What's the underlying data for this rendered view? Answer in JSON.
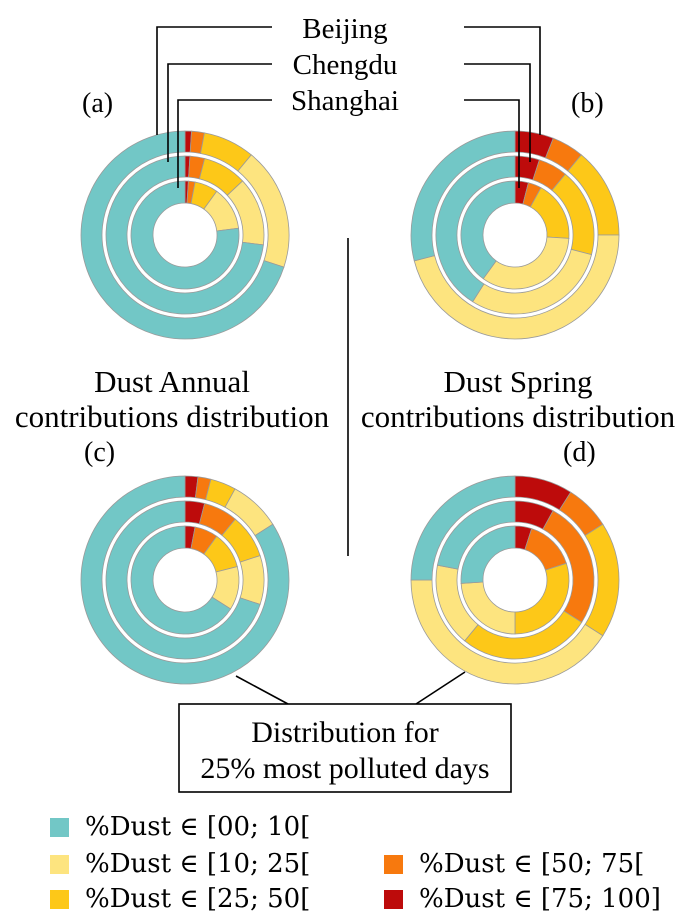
{
  "colors": {
    "00_10": "#72c7c6",
    "10_25": "#fde47f",
    "25_50": "#fdc818",
    "50_75": "#f7790e",
    "75_100": "#bd0b0b",
    "ring_stroke": "#9a9a9a"
  },
  "labels": {
    "city1": "Beijing",
    "city2": "Chengdu",
    "city3": "Shanghai",
    "panel_a": "(a)",
    "panel_b": "(b)",
    "panel_c": "(c)",
    "panel_d": "(d)",
    "annual_line1": "Dust Annual",
    "annual_line2": "contributions distribution",
    "spring_line1": "Dust Spring",
    "spring_line2": "contributions distribution",
    "box_line1": "Distribution for",
    "box_line2": "25% most polluted days"
  },
  "legend": [
    {
      "label": "%Dust ∈ [00; 10[",
      "color_key": "00_10"
    },
    {
      "label": "%Dust ∈ [10; 25[",
      "color_key": "10_25"
    },
    {
      "label": "%Dust ∈ [25; 50[",
      "color_key": "25_50"
    },
    {
      "label": "%Dust ∈ [50; 75[",
      "color_key": "50_75"
    },
    {
      "label": "%Dust ∈ [75; 100]",
      "color_key": "75_100"
    }
  ],
  "chart_data": [
    {
      "type": "pie",
      "panel": "(a)",
      "subtitle": "Dust Annual contributions distribution",
      "categories": [
        "%Dust ∈ [00; 10[",
        "%Dust ∈ [10; 25[",
        "%Dust ∈ [25; 50[",
        "%Dust ∈ [50; 75[",
        "%Dust ∈ [75; 100]"
      ],
      "series": [
        {
          "name": "Beijing",
          "values": [
            70,
            19,
            8,
            2,
            1
          ]
        },
        {
          "name": "Chengdu",
          "values": [
            73,
            14,
            9,
            3,
            1
          ]
        },
        {
          "name": "Shanghai",
          "values": [
            77,
            13,
            7,
            2,
            1
          ]
        }
      ]
    },
    {
      "type": "pie",
      "panel": "(b)",
      "subtitle": "Dust Spring contributions distribution",
      "categories": [
        "%Dust ∈ [00; 10[",
        "%Dust ∈ [10; 25[",
        "%Dust ∈ [25; 50[",
        "%Dust ∈ [50; 75[",
        "%Dust ∈ [75; 100]"
      ],
      "series": [
        {
          "name": "Beijing",
          "values": [
            29,
            46,
            14,
            5,
            6
          ]
        },
        {
          "name": "Chengdu",
          "values": [
            41,
            30,
            18,
            6,
            5
          ]
        },
        {
          "name": "Shanghai",
          "values": [
            40,
            34,
            18,
            4,
            4
          ]
        }
      ]
    },
    {
      "type": "pie",
      "panel": "(c)",
      "subtitle": "Distribution for 25% most polluted days",
      "categories": [
        "%Dust ∈ [00; 10[",
        "%Dust ∈ [10; 25[",
        "%Dust ∈ [25; 50[",
        "%Dust ∈ [50; 75[",
        "%Dust ∈ [75; 100]"
      ],
      "series": [
        {
          "name": "Beijing",
          "values": [
            84,
            8,
            4,
            2,
            2
          ]
        },
        {
          "name": "Chengdu",
          "values": [
            70,
            10,
            9,
            7,
            4
          ]
        },
        {
          "name": "Shanghai",
          "values": [
            66,
            13,
            11,
            7,
            3
          ]
        }
      ]
    },
    {
      "type": "pie",
      "panel": "(d)",
      "subtitle": "Distribution for 25% most polluted days",
      "categories": [
        "%Dust ∈ [00; 10[",
        "%Dust ∈ [10; 25[",
        "%Dust ∈ [25; 50[",
        "%Dust ∈ [50; 75[",
        "%Dust ∈ [75; 100]"
      ],
      "series": [
        {
          "name": "Beijing",
          "values": [
            25,
            41,
            18,
            7,
            9
          ]
        },
        {
          "name": "Chengdu",
          "values": [
            22,
            17,
            27,
            26,
            8
          ]
        },
        {
          "name": "Shanghai",
          "values": [
            26,
            24,
            30,
            15,
            5
          ]
        }
      ]
    }
  ]
}
